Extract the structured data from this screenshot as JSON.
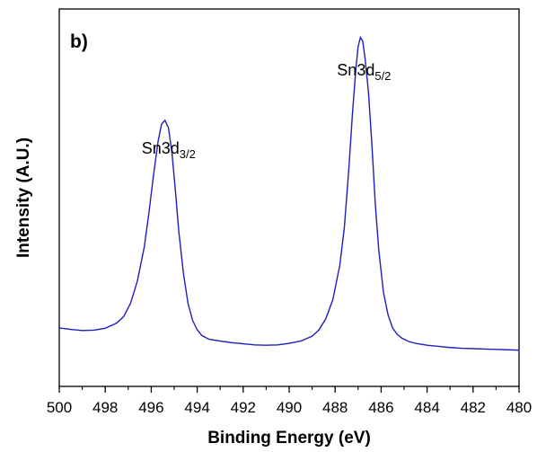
{
  "chart_data": {
    "type": "line",
    "panel_label": "b)",
    "xlabel": "Binding Energy (eV)",
    "ylabel": "Intensity (A.U.)",
    "xlim": [
      500,
      480
    ],
    "ylim": [
      0,
      100
    ],
    "x_ticks": [
      "500",
      "498",
      "496",
      "494",
      "492",
      "490",
      "488",
      "486",
      "484",
      "482",
      "480"
    ],
    "y_ticks_labeled": false,
    "grid": false,
    "legend": "none",
    "line_color": "#1f1fbf",
    "annotations": [
      {
        "base": "Sn3d",
        "sub": "3/2",
        "x": 495.4
      },
      {
        "base": "Sn3d",
        "sub": "5/2",
        "x": 486.9
      }
    ],
    "series": [
      {
        "x": [
          500,
          499.5,
          499,
          498.5,
          498,
          497.5,
          497.2,
          496.9,
          496.6,
          496.3,
          496.1,
          495.9,
          495.7,
          495.55,
          495.4,
          495.25,
          495.1,
          494.95,
          494.8,
          494.6,
          494.4,
          494.2,
          494,
          493.8,
          493.5,
          493,
          492.5,
          492,
          491.5,
          491,
          490.5,
          490,
          489.5,
          489,
          488.7,
          488.4,
          488.1,
          487.8,
          487.6,
          487.4,
          487.25,
          487.1,
          487.0,
          486.9,
          486.8,
          486.7,
          486.55,
          486.4,
          486.25,
          486.1,
          485.9,
          485.7,
          485.5,
          485.3,
          485.1,
          484.8,
          484.5,
          484,
          483.5,
          483,
          482.5,
          482,
          481.5,
          481,
          480.5,
          480
        ],
        "y": [
          15.5,
          15.1,
          14.8,
          14.9,
          15.4,
          16.8,
          18.5,
          22.0,
          28.0,
          37.0,
          46.0,
          56.0,
          65.0,
          69.5,
          70.5,
          68.5,
          62.0,
          52.0,
          41.0,
          30.0,
          22.0,
          17.5,
          15.0,
          13.5,
          12.5,
          12.0,
          11.6,
          11.3,
          11.0,
          10.9,
          11.0,
          11.4,
          12.0,
          13.3,
          15.0,
          18.0,
          23.0,
          32.0,
          42.0,
          58.0,
          72.0,
          84.0,
          90.0,
          92.5,
          91.5,
          87.0,
          78.0,
          64.0,
          48.0,
          36.0,
          25.0,
          19.0,
          15.5,
          13.8,
          12.8,
          11.9,
          11.4,
          10.9,
          10.6,
          10.3,
          10.1,
          10.0,
          9.9,
          9.8,
          9.7,
          9.6
        ]
      }
    ]
  }
}
